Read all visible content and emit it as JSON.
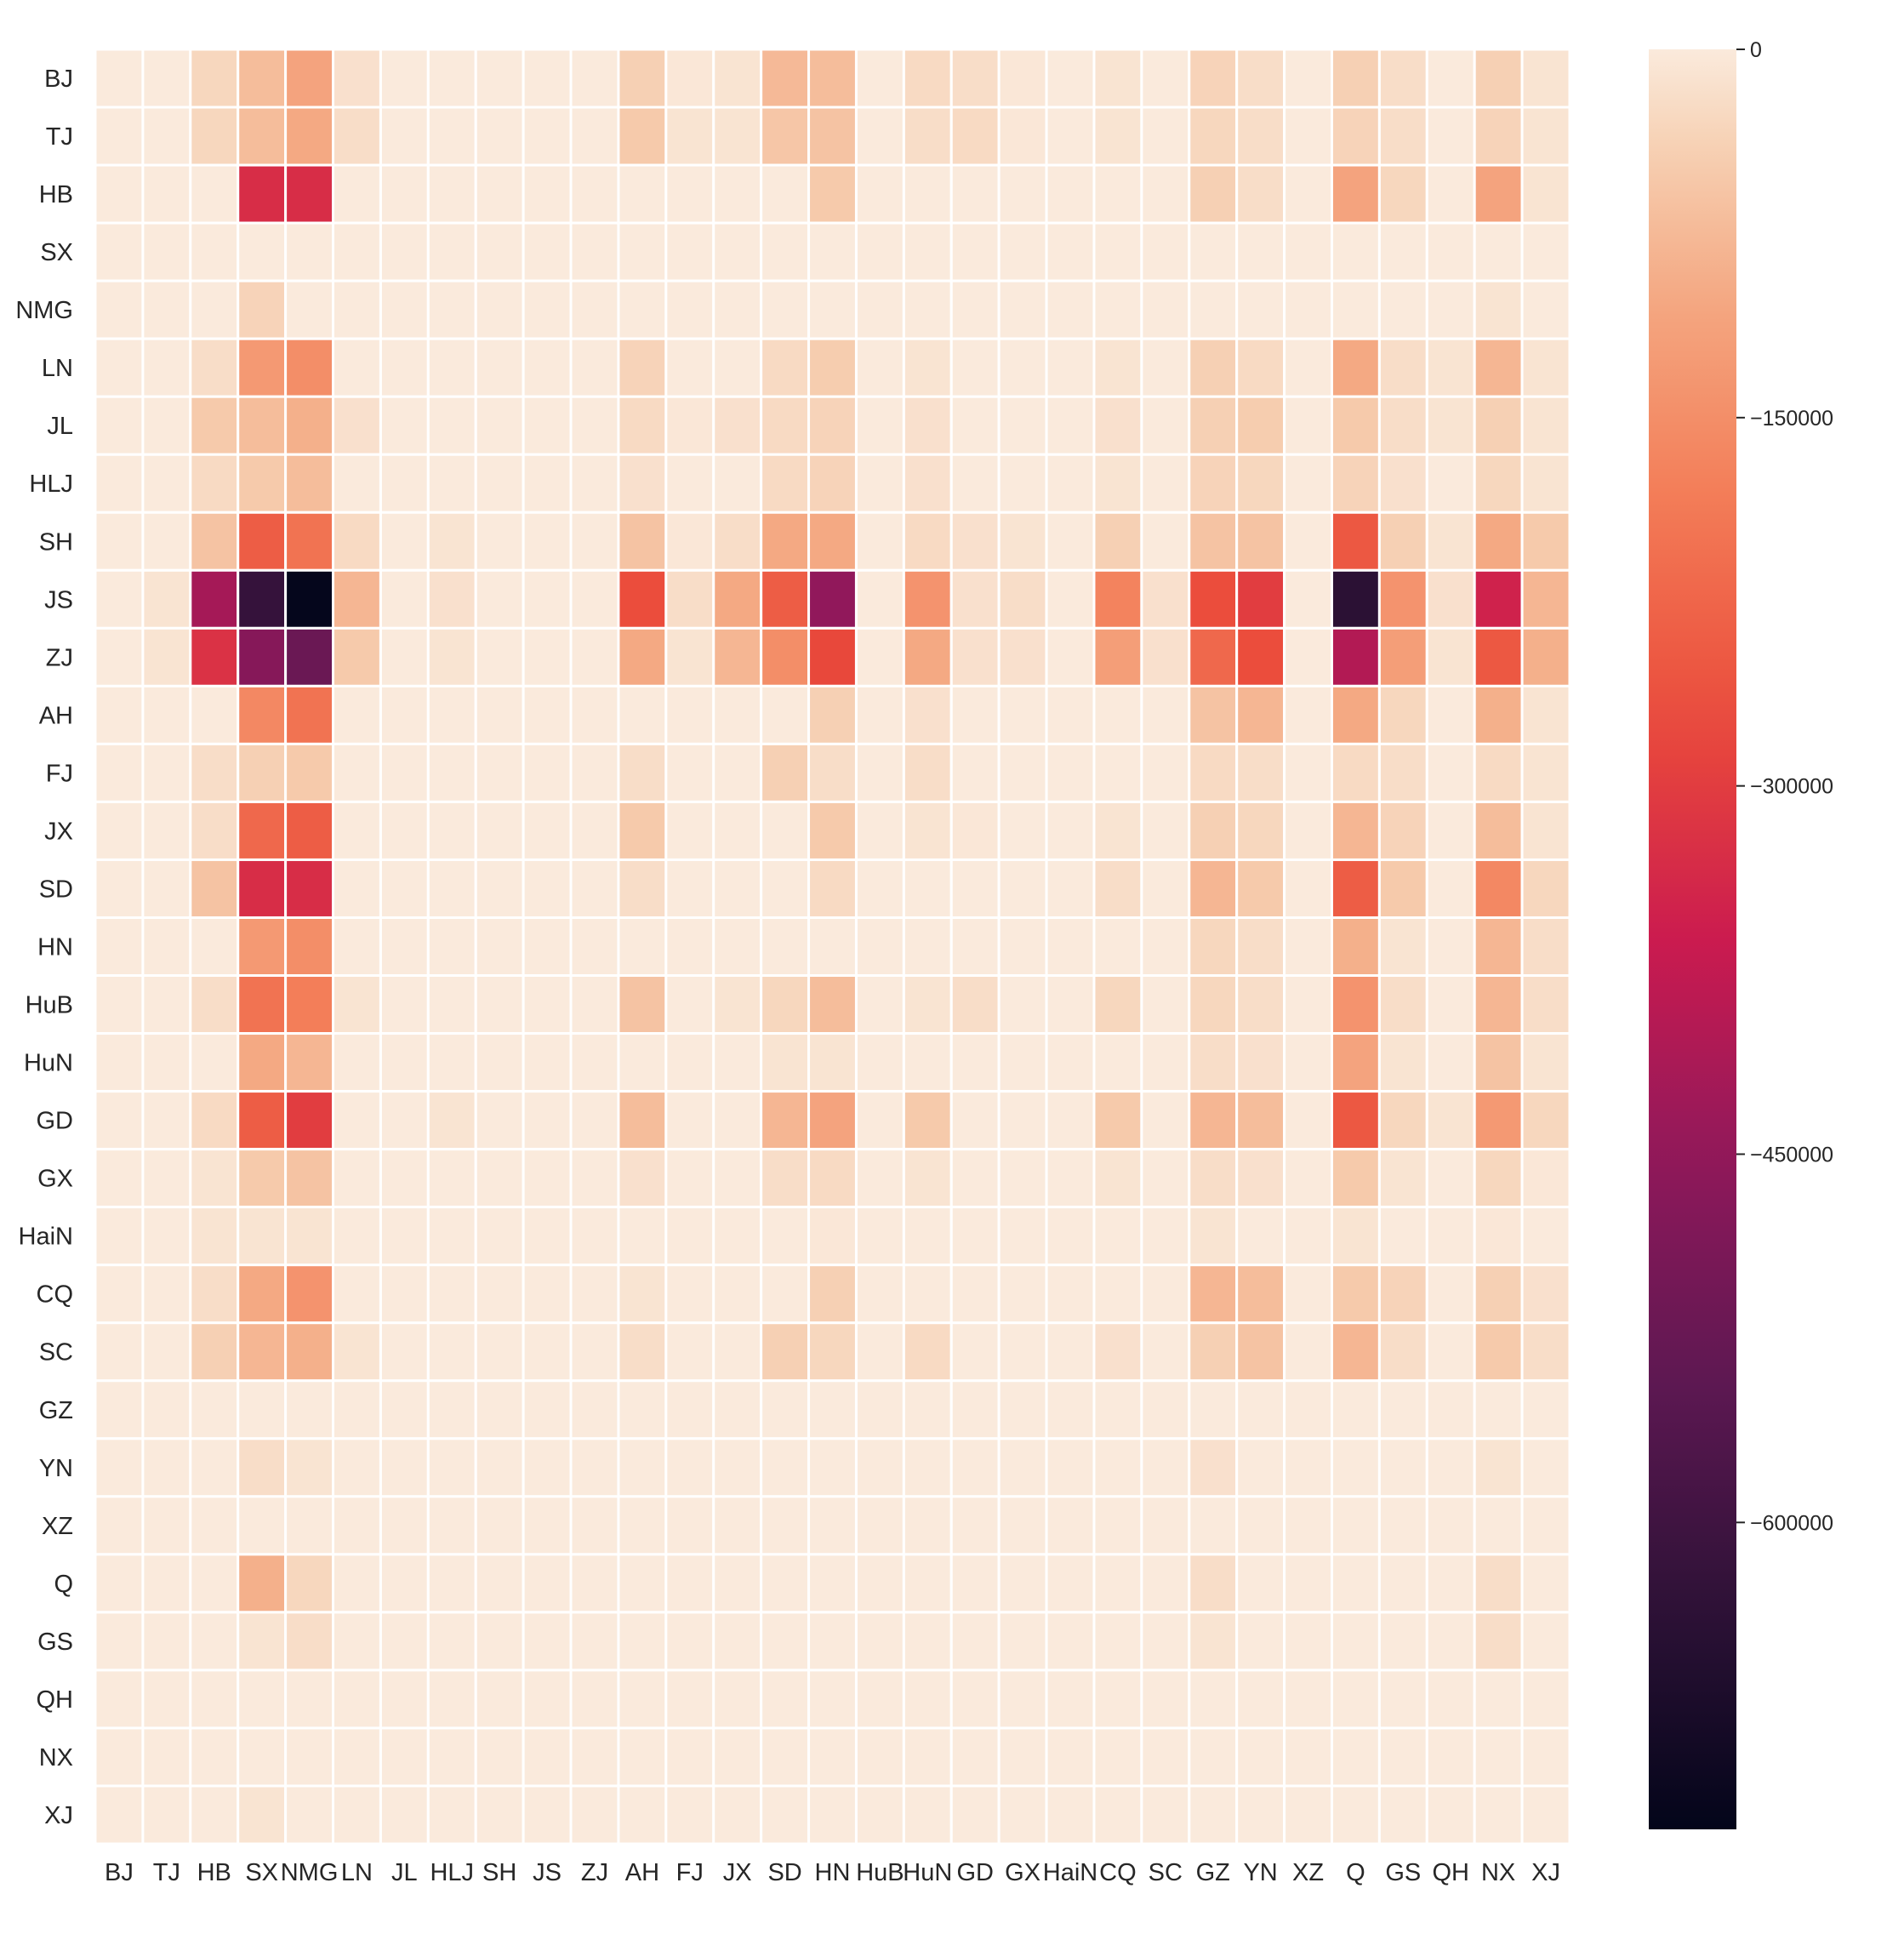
{
  "chart_data": {
    "type": "heatmap",
    "title": "",
    "xlabel": "",
    "ylabel": "",
    "rows": [
      "BJ",
      "TJ",
      "HB",
      "SX",
      "NMG",
      "LN",
      "JL",
      "HLJ",
      "SH",
      "JS",
      "ZJ",
      "AH",
      "FJ",
      "JX",
      "SD",
      "HN",
      "HuB",
      "HuN",
      "GD",
      "GX",
      "HaiN",
      "CQ",
      "SC",
      "GZ",
      "YN",
      "XZ",
      "Q",
      "GS",
      "QH",
      "NX",
      "XJ"
    ],
    "columns": [
      "BJ",
      "TJ",
      "HB",
      "SX",
      "NMG",
      "LN",
      "JL",
      "HLJ",
      "SH",
      "JS",
      "ZJ",
      "AH",
      "FJ",
      "JX",
      "SD",
      "HN",
      "HuB",
      "HuN",
      "GD",
      "GX",
      "HaiN",
      "CQ",
      "SC",
      "GZ",
      "YN",
      "XZ",
      "Q",
      "GS",
      "QH",
      "NX",
      "XJ"
    ],
    "values": [
      [
        0,
        0,
        -30000,
        -70000,
        -110000,
        -15000,
        0,
        0,
        0,
        0,
        0,
        -40000,
        -5000,
        -10000,
        -75000,
        -70000,
        0,
        -25000,
        -20000,
        -5000,
        0,
        -10000,
        0,
        -35000,
        -20000,
        0,
        -40000,
        -20000,
        0,
        -40000,
        -10000
      ],
      [
        0,
        0,
        -30000,
        -70000,
        -100000,
        -20000,
        0,
        0,
        0,
        0,
        0,
        -50000,
        -10000,
        -10000,
        -55000,
        -60000,
        0,
        -20000,
        -25000,
        -5000,
        0,
        -10000,
        0,
        -30000,
        -20000,
        0,
        -35000,
        -20000,
        0,
        -35000,
        -10000
      ],
      [
        0,
        0,
        0,
        -330000,
        -330000,
        0,
        0,
        0,
        0,
        0,
        0,
        0,
        0,
        0,
        0,
        -50000,
        0,
        0,
        0,
        0,
        0,
        0,
        0,
        -40000,
        -20000,
        0,
        -110000,
        -30000,
        0,
        -110000,
        -10000
      ],
      [
        0,
        0,
        0,
        0,
        0,
        0,
        0,
        0,
        0,
        0,
        0,
        0,
        0,
        0,
        0,
        0,
        0,
        0,
        0,
        0,
        0,
        0,
        0,
        0,
        0,
        0,
        0,
        0,
        0,
        0,
        0
      ],
      [
        0,
        0,
        0,
        -35000,
        0,
        0,
        0,
        0,
        0,
        0,
        0,
        0,
        0,
        0,
        0,
        0,
        0,
        0,
        0,
        0,
        0,
        0,
        0,
        0,
        0,
        0,
        0,
        0,
        0,
        -10000,
        0
      ],
      [
        0,
        0,
        -20000,
        -130000,
        -150000,
        0,
        0,
        0,
        0,
        0,
        0,
        -35000,
        0,
        0,
        -25000,
        -45000,
        0,
        -10000,
        0,
        0,
        0,
        -10000,
        0,
        -40000,
        -25000,
        0,
        -100000,
        -20000,
        -10000,
        -80000,
        -10000
      ],
      [
        0,
        0,
        -50000,
        -70000,
        -90000,
        -15000,
        0,
        0,
        0,
        0,
        0,
        -25000,
        -5000,
        -15000,
        -25000,
        -35000,
        0,
        -15000,
        0,
        0,
        0,
        -15000,
        0,
        -40000,
        -45000,
        0,
        -50000,
        -20000,
        -10000,
        -40000,
        -10000
      ],
      [
        0,
        0,
        -25000,
        -50000,
        -70000,
        0,
        0,
        0,
        0,
        0,
        0,
        -15000,
        0,
        0,
        -25000,
        -35000,
        0,
        -15000,
        0,
        0,
        0,
        -10000,
        0,
        -35000,
        -30000,
        0,
        -35000,
        -15000,
        0,
        -30000,
        -10000
      ],
      [
        0,
        0,
        -60000,
        -240000,
        -200000,
        -25000,
        0,
        -10000,
        0,
        0,
        0,
        -60000,
        -5000,
        -20000,
        -100000,
        -100000,
        0,
        -25000,
        -15000,
        -10000,
        0,
        -40000,
        0,
        -60000,
        -60000,
        0,
        -250000,
        -40000,
        -10000,
        -100000,
        -50000
      ],
      [
        0,
        -10000,
        -420000,
        -620000,
        -720000,
        -80000,
        0,
        -15000,
        0,
        0,
        0,
        -270000,
        -20000,
        -100000,
        -240000,
        -450000,
        0,
        -140000,
        -15000,
        -20000,
        0,
        -170000,
        -15000,
        -270000,
        -300000,
        0,
        -640000,
        -140000,
        -15000,
        -350000,
        -80000
      ],
      [
        0,
        -10000,
        -320000,
        -470000,
        -520000,
        -50000,
        0,
        -10000,
        0,
        0,
        0,
        -100000,
        -10000,
        -80000,
        -150000,
        -280000,
        0,
        -100000,
        -15000,
        -15000,
        0,
        -120000,
        -15000,
        -220000,
        -270000,
        0,
        -400000,
        -120000,
        -10000,
        -250000,
        -90000
      ],
      [
        0,
        0,
        0,
        -160000,
        -200000,
        0,
        0,
        0,
        0,
        0,
        0,
        0,
        0,
        0,
        0,
        -40000,
        0,
        -15000,
        0,
        0,
        0,
        0,
        0,
        -60000,
        -80000,
        0,
        -100000,
        -30000,
        0,
        -90000,
        -10000
      ],
      [
        0,
        0,
        -20000,
        -40000,
        -50000,
        0,
        0,
        0,
        0,
        0,
        0,
        -20000,
        0,
        0,
        -40000,
        -20000,
        0,
        -20000,
        0,
        0,
        0,
        0,
        0,
        -25000,
        -20000,
        0,
        -25000,
        -20000,
        0,
        -25000,
        -10000
      ],
      [
        0,
        0,
        -20000,
        -220000,
        -240000,
        0,
        0,
        0,
        0,
        0,
        0,
        -50000,
        0,
        0,
        0,
        -50000,
        0,
        -10000,
        -5000,
        0,
        0,
        -10000,
        0,
        -40000,
        -30000,
        0,
        -80000,
        -35000,
        0,
        -70000,
        -10000
      ],
      [
        0,
        0,
        -60000,
        -330000,
        -330000,
        0,
        0,
        0,
        0,
        0,
        0,
        -20000,
        0,
        0,
        0,
        -25000,
        0,
        0,
        0,
        0,
        0,
        -20000,
        0,
        -80000,
        -50000,
        0,
        -240000,
        -50000,
        0,
        -160000,
        -30000
      ],
      [
        0,
        0,
        0,
        -130000,
        -150000,
        0,
        0,
        0,
        0,
        0,
        0,
        0,
        0,
        0,
        0,
        0,
        0,
        0,
        0,
        0,
        0,
        0,
        0,
        -30000,
        -20000,
        0,
        -90000,
        -10000,
        0,
        -80000,
        -20000
      ],
      [
        0,
        0,
        -20000,
        -200000,
        -180000,
        -10000,
        0,
        0,
        0,
        0,
        0,
        -60000,
        0,
        -10000,
        -30000,
        -70000,
        0,
        -10000,
        -20000,
        0,
        0,
        -30000,
        0,
        -30000,
        -20000,
        0,
        -140000,
        -20000,
        0,
        -80000,
        -20000
      ],
      [
        0,
        0,
        0,
        -100000,
        -80000,
        0,
        0,
        0,
        0,
        0,
        0,
        0,
        0,
        0,
        -10000,
        -10000,
        0,
        0,
        0,
        0,
        0,
        0,
        0,
        -20000,
        -15000,
        0,
        -110000,
        -10000,
        0,
        -60000,
        -10000
      ],
      [
        0,
        0,
        -25000,
        -240000,
        -300000,
        0,
        0,
        -10000,
        0,
        0,
        0,
        -70000,
        0,
        0,
        -80000,
        -110000,
        0,
        -50000,
        0,
        0,
        0,
        -50000,
        0,
        -80000,
        -70000,
        0,
        -250000,
        -30000,
        -10000,
        -130000,
        -30000
      ],
      [
        0,
        0,
        -10000,
        -50000,
        -60000,
        0,
        0,
        0,
        0,
        0,
        0,
        -15000,
        0,
        0,
        -20000,
        -25000,
        0,
        -10000,
        0,
        0,
        0,
        -10000,
        0,
        -20000,
        -15000,
        0,
        -50000,
        -10000,
        0,
        -30000,
        -5000
      ],
      [
        0,
        0,
        -10000,
        -10000,
        -10000,
        0,
        0,
        0,
        0,
        0,
        0,
        0,
        0,
        0,
        0,
        -5000,
        0,
        0,
        0,
        0,
        0,
        0,
        0,
        -10000,
        0,
        0,
        -10000,
        0,
        0,
        -5000,
        0
      ],
      [
        0,
        0,
        -20000,
        -100000,
        -140000,
        0,
        0,
        0,
        0,
        0,
        0,
        -10000,
        0,
        0,
        0,
        -40000,
        0,
        0,
        0,
        0,
        0,
        0,
        0,
        -80000,
        -70000,
        0,
        -50000,
        -35000,
        0,
        -40000,
        -15000
      ],
      [
        0,
        0,
        -40000,
        -80000,
        -90000,
        -10000,
        0,
        0,
        0,
        0,
        0,
        -20000,
        0,
        0,
        -40000,
        -30000,
        0,
        -25000,
        0,
        0,
        0,
        -15000,
        0,
        -40000,
        -60000,
        0,
        -80000,
        -20000,
        0,
        -50000,
        -20000
      ],
      [
        0,
        0,
        0,
        0,
        0,
        0,
        0,
        0,
        0,
        0,
        0,
        0,
        0,
        0,
        0,
        0,
        0,
        0,
        0,
        0,
        0,
        0,
        0,
        0,
        0,
        0,
        0,
        0,
        0,
        0,
        0
      ],
      [
        0,
        0,
        0,
        -20000,
        -10000,
        0,
        0,
        0,
        0,
        0,
        0,
        0,
        0,
        0,
        0,
        0,
        0,
        0,
        0,
        0,
        0,
        0,
        0,
        -15000,
        0,
        0,
        0,
        0,
        0,
        -10000,
        0
      ],
      [
        0,
        0,
        0,
        0,
        0,
        0,
        0,
        0,
        0,
        0,
        0,
        0,
        0,
        0,
        0,
        0,
        0,
        0,
        0,
        0,
        0,
        0,
        0,
        0,
        0,
        0,
        0,
        0,
        0,
        0,
        0
      ],
      [
        0,
        0,
        0,
        -90000,
        -30000,
        0,
        0,
        0,
        0,
        0,
        0,
        0,
        0,
        0,
        0,
        0,
        0,
        0,
        0,
        0,
        0,
        0,
        0,
        -20000,
        0,
        0,
        0,
        0,
        0,
        -20000,
        0
      ],
      [
        0,
        0,
        0,
        -10000,
        -20000,
        0,
        0,
        0,
        0,
        0,
        0,
        0,
        0,
        0,
        0,
        0,
        0,
        0,
        0,
        0,
        0,
        0,
        0,
        -10000,
        0,
        0,
        0,
        0,
        0,
        -20000,
        0
      ],
      [
        0,
        0,
        0,
        0,
        0,
        0,
        0,
        0,
        0,
        0,
        0,
        0,
        0,
        0,
        0,
        0,
        0,
        0,
        0,
        0,
        0,
        0,
        0,
        0,
        0,
        0,
        0,
        0,
        0,
        0,
        0
      ],
      [
        0,
        0,
        0,
        0,
        0,
        0,
        0,
        0,
        0,
        0,
        0,
        0,
        0,
        0,
        0,
        0,
        0,
        0,
        0,
        0,
        0,
        0,
        0,
        0,
        0,
        0,
        0,
        0,
        0,
        0,
        0
      ],
      [
        0,
        0,
        0,
        -10000,
        0,
        0,
        0,
        0,
        0,
        0,
        0,
        0,
        0,
        0,
        0,
        0,
        0,
        0,
        0,
        0,
        0,
        0,
        0,
        0,
        0,
        0,
        0,
        0,
        0,
        0,
        0
      ]
    ],
    "vmin": -725000,
    "vmax": 0,
    "colormap": "rocket",
    "colorbar": {
      "ticks": [
        0,
        -150000,
        -300000,
        -450000,
        -600000
      ],
      "tick_labels": [
        "0",
        "−150000",
        "−300000",
        "−450000",
        "−600000"
      ],
      "placement": "right"
    },
    "grid_line_color": "#ffffff"
  }
}
